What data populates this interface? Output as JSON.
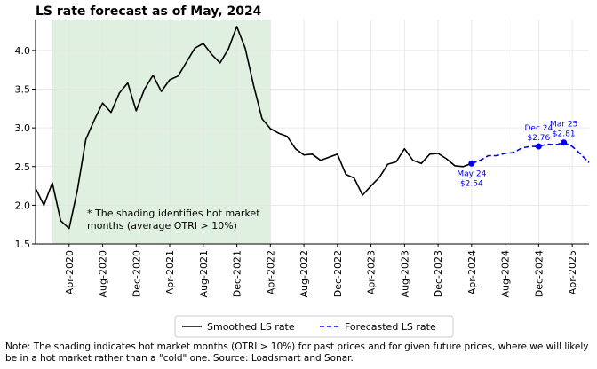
{
  "chart_data": {
    "type": "line",
    "title": "LS rate forecast as of May, 2024",
    "xlabel": "",
    "ylabel": "",
    "x_range": [
      "2019-12",
      "2025-06"
    ],
    "ylim": [
      1.5,
      4.4
    ],
    "yticks": [
      1.5,
      2.0,
      2.5,
      3.0,
      3.5,
      4.0
    ],
    "ytick_labels": [
      "1.5",
      "2.0",
      "2.5",
      "3.0",
      "3.5",
      "4.0"
    ],
    "xticks": [
      "2020-04",
      "2020-08",
      "2020-12",
      "2021-04",
      "2021-08",
      "2021-12",
      "2022-04",
      "2022-08",
      "2022-12",
      "2023-04",
      "2023-08",
      "2023-12",
      "2024-04",
      "2024-08",
      "2024-12",
      "2025-04"
    ],
    "xtick_labels": [
      "Apr-2020",
      "Aug-2020",
      "Dec-2020",
      "Apr-2021",
      "Aug-2021",
      "Dec-2021",
      "Apr-2022",
      "Aug-2022",
      "Dec-2022",
      "Apr-2023",
      "Aug-2023",
      "Dec-2023",
      "Apr-2024",
      "Aug-2024",
      "Dec-2024",
      "Apr-2025"
    ],
    "grid": true,
    "shading": {
      "start": "2020-02",
      "end": "2022-04",
      "color": "#dff0e0",
      "note_lines": [
        "* The shading identifies hot market",
        "months (average OTRI > 10%)"
      ]
    },
    "series": [
      {
        "name": "Smoothed LS rate",
        "color": "#000000",
        "style": "solid",
        "points": [
          [
            "2019-12",
            2.22
          ],
          [
            "2020-01",
            2.0
          ],
          [
            "2020-02",
            2.29
          ],
          [
            "2020-03",
            1.8
          ],
          [
            "2020-04",
            1.7
          ],
          [
            "2020-05",
            2.2
          ],
          [
            "2020-06",
            2.85
          ],
          [
            "2020-07",
            3.1
          ],
          [
            "2020-08",
            3.32
          ],
          [
            "2020-09",
            3.2
          ],
          [
            "2020-10",
            3.45
          ],
          [
            "2020-11",
            3.58
          ],
          [
            "2020-12",
            3.22
          ],
          [
            "2021-01",
            3.5
          ],
          [
            "2021-02",
            3.68
          ],
          [
            "2021-03",
            3.47
          ],
          [
            "2021-04",
            3.62
          ],
          [
            "2021-05",
            3.67
          ],
          [
            "2021-06",
            3.85
          ],
          [
            "2021-07",
            4.03
          ],
          [
            "2021-08",
            4.09
          ],
          [
            "2021-09",
            3.95
          ],
          [
            "2021-10",
            3.84
          ],
          [
            "2021-11",
            4.02
          ],
          [
            "2021-12",
            4.31
          ],
          [
            "2022-01",
            4.03
          ],
          [
            "2022-02",
            3.55
          ],
          [
            "2022-03",
            3.12
          ],
          [
            "2022-04",
            2.99
          ],
          [
            "2022-05",
            2.93
          ],
          [
            "2022-06",
            2.89
          ],
          [
            "2022-07",
            2.73
          ],
          [
            "2022-08",
            2.65
          ],
          [
            "2022-09",
            2.66
          ],
          [
            "2022-10",
            2.58
          ],
          [
            "2022-11",
            2.62
          ],
          [
            "2022-12",
            2.66
          ],
          [
            "2023-01",
            2.4
          ],
          [
            "2023-02",
            2.35
          ],
          [
            "2023-03",
            2.13
          ],
          [
            "2023-04",
            2.25
          ],
          [
            "2023-05",
            2.36
          ],
          [
            "2023-06",
            2.53
          ],
          [
            "2023-07",
            2.56
          ],
          [
            "2023-08",
            2.73
          ],
          [
            "2023-09",
            2.58
          ],
          [
            "2023-10",
            2.54
          ],
          [
            "2023-11",
            2.66
          ],
          [
            "2023-12",
            2.67
          ],
          [
            "2024-01",
            2.6
          ],
          [
            "2024-02",
            2.51
          ],
          [
            "2024-03",
            2.5
          ],
          [
            "2024-04",
            2.54
          ]
        ]
      },
      {
        "name": "Forecasted LS rate",
        "color": "#0000ee",
        "style": "dashed",
        "points": [
          [
            "2024-04",
            2.54
          ],
          [
            "2024-05",
            2.58
          ],
          [
            "2024-06",
            2.64
          ],
          [
            "2024-07",
            2.64
          ],
          [
            "2024-08",
            2.67
          ],
          [
            "2024-09",
            2.68
          ],
          [
            "2024-10",
            2.74
          ],
          [
            "2024-11",
            2.76
          ],
          [
            "2024-12",
            2.76
          ],
          [
            "2025-01",
            2.79
          ],
          [
            "2025-02",
            2.78
          ],
          [
            "2025-03",
            2.81
          ],
          [
            "2025-04",
            2.76
          ],
          [
            "2025-05",
            2.66
          ],
          [
            "2025-06",
            2.55
          ]
        ]
      }
    ],
    "annotations": [
      {
        "x": "2024-04",
        "y": 2.54,
        "label_lines": [
          "May 24",
          "$2.54"
        ],
        "position": "below"
      },
      {
        "x": "2024-12",
        "y": 2.76,
        "label_lines": [
          "Dec 24",
          "$2.76"
        ],
        "position": "above"
      },
      {
        "x": "2025-03",
        "y": 2.81,
        "label_lines": [
          "Mar 25",
          "$2.81"
        ],
        "position": "above"
      }
    ],
    "legend": {
      "placement": "bottom-center",
      "entries": [
        "Smoothed LS rate",
        "Forecasted LS rate"
      ]
    }
  },
  "footnote": "Note: The shading indicates hot market months (OTRI > 10%) for past prices and for given future prices, where we will likely be in a hot market rather than a \"cold\" one. Source: Loadsmart and Sonar."
}
